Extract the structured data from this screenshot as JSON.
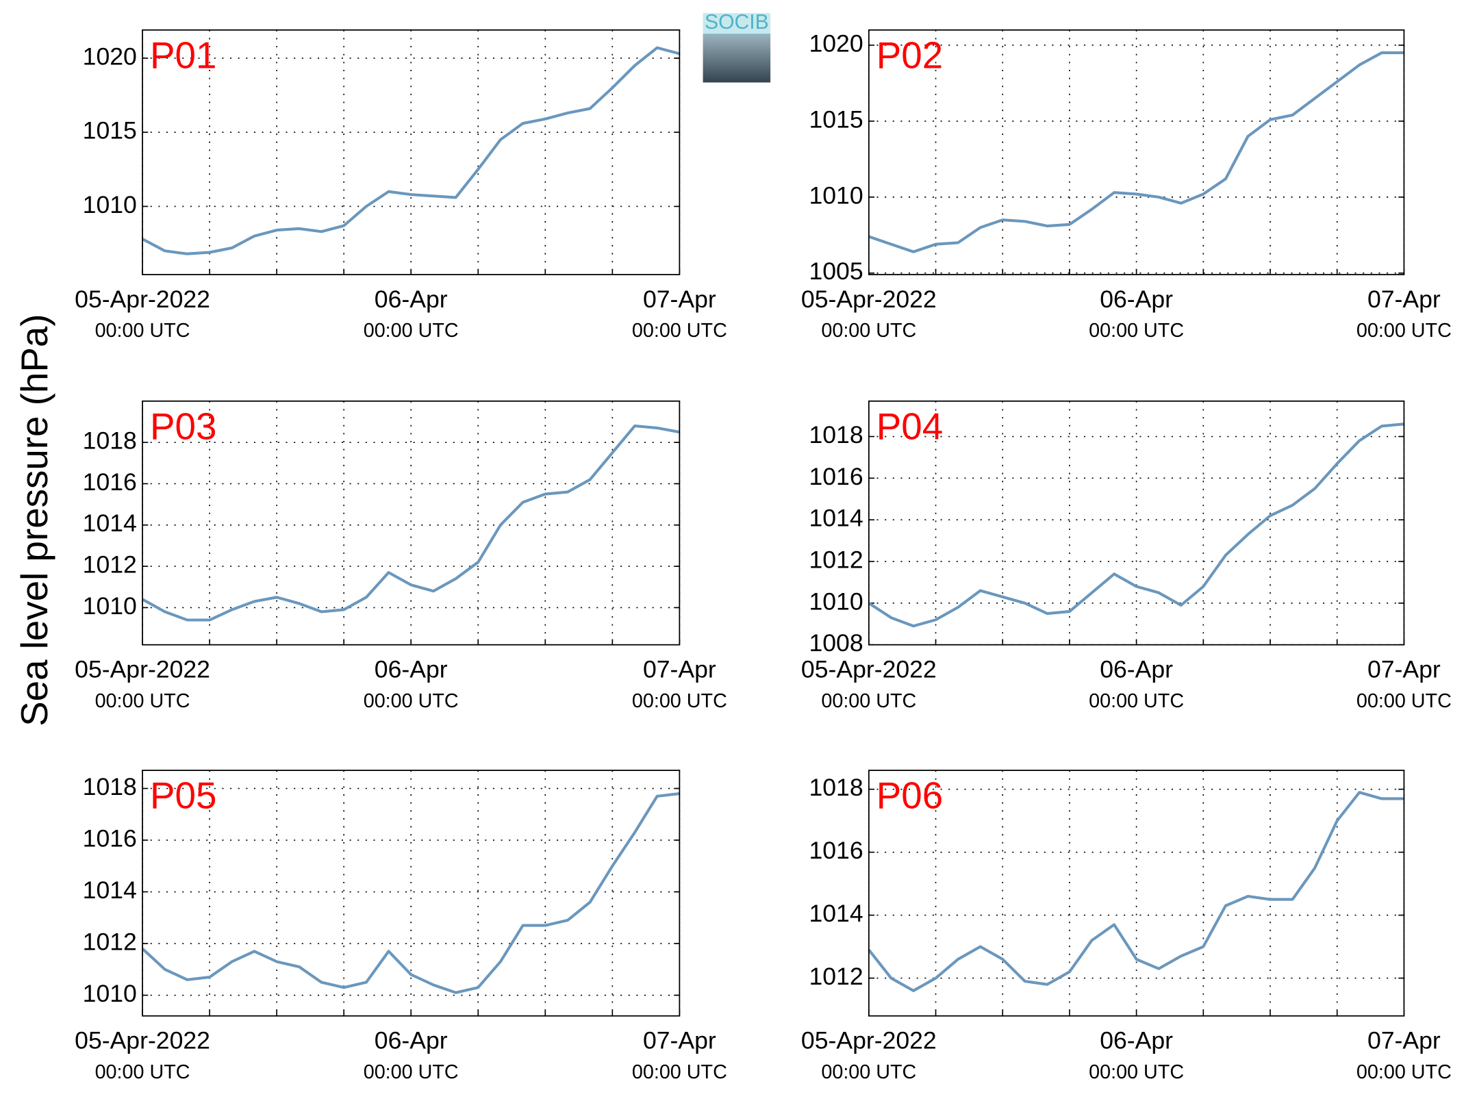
{
  "figure": {
    "ylabel": "Sea level pressure (hPa)",
    "logo": "SOCIB"
  },
  "chart_data": [
    {
      "type": "line",
      "title": "P01",
      "color": "#6a97bd",
      "grid": true,
      "x": [
        "2022-04-05T00:00",
        "2022-04-05T02:00",
        "2022-04-05T04:00",
        "2022-04-05T06:00",
        "2022-04-05T08:00",
        "2022-04-05T10:00",
        "2022-04-05T12:00",
        "2022-04-05T14:00",
        "2022-04-05T16:00",
        "2022-04-05T18:00",
        "2022-04-05T20:00",
        "2022-04-05T22:00",
        "2022-04-06T00:00",
        "2022-04-06T02:00",
        "2022-04-06T04:00",
        "2022-04-06T06:00",
        "2022-04-06T08:00",
        "2022-04-06T10:00",
        "2022-04-06T12:00",
        "2022-04-06T14:00",
        "2022-04-06T16:00",
        "2022-04-06T18:00",
        "2022-04-06T20:00",
        "2022-04-06T22:00",
        "2022-04-07T00:00"
      ],
      "values": [
        1007.8,
        1007.0,
        1006.8,
        1006.9,
        1007.2,
        1008.0,
        1008.4,
        1008.5,
        1008.3,
        1008.7,
        1010.0,
        1011.0,
        1010.8,
        1010.7,
        1010.6,
        1012.5,
        1014.5,
        1015.6,
        1015.9,
        1016.3,
        1016.6,
        1018.0,
        1019.5,
        1020.7,
        1020.3
      ],
      "xlim": [
        "2022-04-05T00:00",
        "2022-04-07T00:00"
      ],
      "xticks": [
        {
          "value": "2022-04-05T00:00",
          "label": [
            "05-Apr-2022",
            "00:00 UTC"
          ]
        },
        {
          "value": "2022-04-06T00:00",
          "label": [
            "06-Apr",
            "00:00 UTC"
          ]
        },
        {
          "value": "2022-04-07T00:00",
          "label": [
            "07-Apr",
            "00:00 UTC"
          ]
        }
      ],
      "xgrid": [
        "2022-04-05T06:00",
        "2022-04-05T12:00",
        "2022-04-05T18:00",
        "2022-04-06T06:00",
        "2022-04-06T12:00",
        "2022-04-06T18:00"
      ],
      "ylim": [
        1005.4,
        1021.9
      ],
      "yticks": [
        1010,
        1015,
        1020
      ]
    },
    {
      "type": "line",
      "title": "P02",
      "color": "#6a97bd",
      "grid": true,
      "x": [
        "2022-04-05T00:00",
        "2022-04-05T02:00",
        "2022-04-05T04:00",
        "2022-04-05T06:00",
        "2022-04-05T08:00",
        "2022-04-05T10:00",
        "2022-04-05T12:00",
        "2022-04-05T14:00",
        "2022-04-05T16:00",
        "2022-04-05T18:00",
        "2022-04-05T20:00",
        "2022-04-05T22:00",
        "2022-04-06T00:00",
        "2022-04-06T02:00",
        "2022-04-06T04:00",
        "2022-04-06T06:00",
        "2022-04-06T08:00",
        "2022-04-06T10:00",
        "2022-04-06T12:00",
        "2022-04-06T14:00",
        "2022-04-06T16:00",
        "2022-04-06T18:00",
        "2022-04-06T20:00",
        "2022-04-06T22:00",
        "2022-04-07T00:00"
      ],
      "values": [
        1007.4,
        1006.9,
        1006.4,
        1006.9,
        1007.0,
        1008.0,
        1008.5,
        1008.4,
        1008.1,
        1008.2,
        1009.2,
        1010.3,
        1010.2,
        1010.0,
        1009.6,
        1010.2,
        1011.2,
        1014.0,
        1015.1,
        1015.4,
        1016.5,
        1017.6,
        1018.7,
        1019.5,
        1019.5
      ],
      "xlim": [
        "2022-04-05T00:00",
        "2022-04-07T00:00"
      ],
      "xticks": [
        {
          "value": "2022-04-05T00:00",
          "label": [
            "05-Apr-2022",
            "00:00 UTC"
          ]
        },
        {
          "value": "2022-04-06T00:00",
          "label": [
            "06-Apr",
            "00:00 UTC"
          ]
        },
        {
          "value": "2022-04-07T00:00",
          "label": [
            "07-Apr",
            "00:00 UTC"
          ]
        }
      ],
      "xgrid": [
        "2022-04-05T06:00",
        "2022-04-05T12:00",
        "2022-04-05T18:00",
        "2022-04-06T06:00",
        "2022-04-06T12:00",
        "2022-04-06T18:00"
      ],
      "ylim": [
        1004.9,
        1021.0
      ],
      "yticks": [
        1005,
        1010,
        1015,
        1020
      ]
    },
    {
      "type": "line",
      "title": "P03",
      "color": "#6a97bd",
      "grid": true,
      "x": [
        "2022-04-05T00:00",
        "2022-04-05T02:00",
        "2022-04-05T04:00",
        "2022-04-05T06:00",
        "2022-04-05T08:00",
        "2022-04-05T10:00",
        "2022-04-05T12:00",
        "2022-04-05T14:00",
        "2022-04-05T16:00",
        "2022-04-05T18:00",
        "2022-04-05T20:00",
        "2022-04-05T22:00",
        "2022-04-06T00:00",
        "2022-04-06T02:00",
        "2022-04-06T04:00",
        "2022-04-06T06:00",
        "2022-04-06T08:00",
        "2022-04-06T10:00",
        "2022-04-06T12:00",
        "2022-04-06T14:00",
        "2022-04-06T16:00",
        "2022-04-06T18:00",
        "2022-04-06T20:00",
        "2022-04-06T22:00",
        "2022-04-07T00:00"
      ],
      "values": [
        1010.4,
        1009.8,
        1009.4,
        1009.4,
        1009.9,
        1010.3,
        1010.5,
        1010.2,
        1009.8,
        1009.9,
        1010.5,
        1011.7,
        1011.1,
        1010.8,
        1011.4,
        1012.2,
        1014.0,
        1015.1,
        1015.5,
        1015.6,
        1016.2,
        1017.5,
        1018.8,
        1018.7,
        1018.5
      ],
      "xlim": [
        "2022-04-05T00:00",
        "2022-04-07T00:00"
      ],
      "xticks": [
        {
          "value": "2022-04-05T00:00",
          "label": [
            "05-Apr-2022",
            "00:00 UTC"
          ]
        },
        {
          "value": "2022-04-06T00:00",
          "label": [
            "06-Apr",
            "00:00 UTC"
          ]
        },
        {
          "value": "2022-04-07T00:00",
          "label": [
            "07-Apr",
            "00:00 UTC"
          ]
        }
      ],
      "xgrid": [
        "2022-04-05T06:00",
        "2022-04-05T12:00",
        "2022-04-05T18:00",
        "2022-04-06T06:00",
        "2022-04-06T12:00",
        "2022-04-06T18:00"
      ],
      "ylim": [
        1008.2,
        1020.0
      ],
      "yticks": [
        1010,
        1012,
        1014,
        1016,
        1018
      ]
    },
    {
      "type": "line",
      "title": "P04",
      "color": "#6a97bd",
      "grid": true,
      "x": [
        "2022-04-05T00:00",
        "2022-04-05T02:00",
        "2022-04-05T04:00",
        "2022-04-05T06:00",
        "2022-04-05T08:00",
        "2022-04-05T10:00",
        "2022-04-05T12:00",
        "2022-04-05T14:00",
        "2022-04-05T16:00",
        "2022-04-05T18:00",
        "2022-04-05T20:00",
        "2022-04-05T22:00",
        "2022-04-06T00:00",
        "2022-04-06T02:00",
        "2022-04-06T04:00",
        "2022-04-06T06:00",
        "2022-04-06T08:00",
        "2022-04-06T10:00",
        "2022-04-06T12:00",
        "2022-04-06T14:00",
        "2022-04-06T16:00",
        "2022-04-06T18:00",
        "2022-04-06T20:00",
        "2022-04-06T22:00",
        "2022-04-07T00:00"
      ],
      "values": [
        1010.0,
        1009.3,
        1008.9,
        1009.2,
        1009.8,
        1010.6,
        1010.3,
        1010.0,
        1009.5,
        1009.6,
        1010.5,
        1011.4,
        1010.8,
        1010.5,
        1009.9,
        1010.8,
        1012.3,
        1013.3,
        1014.2,
        1014.7,
        1015.5,
        1016.7,
        1017.8,
        1018.5,
        1018.6
      ],
      "xlim": [
        "2022-04-05T00:00",
        "2022-04-07T00:00"
      ],
      "xticks": [
        {
          "value": "2022-04-05T00:00",
          "label": [
            "05-Apr-2022",
            "00:00 UTC"
          ]
        },
        {
          "value": "2022-04-06T00:00",
          "label": [
            "06-Apr",
            "00:00 UTC"
          ]
        },
        {
          "value": "2022-04-07T00:00",
          "label": [
            "07-Apr",
            "00:00 UTC"
          ]
        }
      ],
      "xgrid": [
        "2022-04-05T06:00",
        "2022-04-05T12:00",
        "2022-04-05T18:00",
        "2022-04-06T06:00",
        "2022-04-06T12:00",
        "2022-04-06T18:00"
      ],
      "ylim": [
        1008.0,
        1019.7
      ],
      "yticks": [
        1008,
        1010,
        1012,
        1014,
        1016,
        1018
      ]
    },
    {
      "type": "line",
      "title": "P05",
      "color": "#6a97bd",
      "grid": true,
      "x": [
        "2022-04-05T00:00",
        "2022-04-05T02:00",
        "2022-04-05T04:00",
        "2022-04-05T06:00",
        "2022-04-05T08:00",
        "2022-04-05T10:00",
        "2022-04-05T12:00",
        "2022-04-05T14:00",
        "2022-04-05T16:00",
        "2022-04-05T18:00",
        "2022-04-05T20:00",
        "2022-04-05T22:00",
        "2022-04-06T00:00",
        "2022-04-06T02:00",
        "2022-04-06T04:00",
        "2022-04-06T06:00",
        "2022-04-06T08:00",
        "2022-04-06T10:00",
        "2022-04-06T12:00",
        "2022-04-06T14:00",
        "2022-04-06T16:00",
        "2022-04-06T18:00",
        "2022-04-06T20:00",
        "2022-04-06T22:00",
        "2022-04-07T00:00"
      ],
      "values": [
        1011.8,
        1011.0,
        1010.6,
        1010.7,
        1011.3,
        1011.7,
        1011.3,
        1011.1,
        1010.5,
        1010.3,
        1010.5,
        1011.7,
        1010.8,
        1010.4,
        1010.1,
        1010.3,
        1011.3,
        1012.7,
        1012.7,
        1012.9,
        1013.6,
        1015.0,
        1016.3,
        1017.7,
        1017.8
      ],
      "xlim": [
        "2022-04-05T00:00",
        "2022-04-07T00:00"
      ],
      "xticks": [
        {
          "value": "2022-04-05T00:00",
          "label": [
            "05-Apr-2022",
            "00:00 UTC"
          ]
        },
        {
          "value": "2022-04-06T00:00",
          "label": [
            "06-Apr",
            "00:00 UTC"
          ]
        },
        {
          "value": "2022-04-07T00:00",
          "label": [
            "07-Apr",
            "00:00 UTC"
          ]
        }
      ],
      "xgrid": [
        "2022-04-05T06:00",
        "2022-04-05T12:00",
        "2022-04-05T18:00",
        "2022-04-06T06:00",
        "2022-04-06T12:00",
        "2022-04-06T18:00"
      ],
      "ylim": [
        1009.2,
        1018.7
      ],
      "yticks": [
        1010,
        1012,
        1014,
        1016,
        1018
      ]
    },
    {
      "type": "line",
      "title": "P06",
      "color": "#6a97bd",
      "grid": true,
      "x": [
        "2022-04-05T00:00",
        "2022-04-05T02:00",
        "2022-04-05T04:00",
        "2022-04-05T06:00",
        "2022-04-05T08:00",
        "2022-04-05T10:00",
        "2022-04-05T12:00",
        "2022-04-05T14:00",
        "2022-04-05T16:00",
        "2022-04-05T18:00",
        "2022-04-05T20:00",
        "2022-04-05T22:00",
        "2022-04-06T00:00",
        "2022-04-06T02:00",
        "2022-04-06T04:00",
        "2022-04-06T06:00",
        "2022-04-06T08:00",
        "2022-04-06T10:00",
        "2022-04-06T12:00",
        "2022-04-06T14:00",
        "2022-04-06T16:00",
        "2022-04-06T18:00",
        "2022-04-06T20:00",
        "2022-04-06T22:00",
        "2022-04-07T00:00"
      ],
      "values": [
        1012.9,
        1012.0,
        1011.6,
        1012.0,
        1012.6,
        1013.0,
        1012.6,
        1011.9,
        1011.8,
        1012.2,
        1013.2,
        1013.7,
        1012.6,
        1012.3,
        1012.7,
        1013.0,
        1014.3,
        1014.6,
        1014.5,
        1014.5,
        1015.5,
        1017.0,
        1017.9,
        1017.7,
        1017.7
      ],
      "xlim": [
        "2022-04-05T00:00",
        "2022-04-07T00:00"
      ],
      "xticks": [
        {
          "value": "2022-04-05T00:00",
          "label": [
            "05-Apr-2022",
            "00:00 UTC"
          ]
        },
        {
          "value": "2022-04-06T00:00",
          "label": [
            "06-Apr",
            "00:00 UTC"
          ]
        },
        {
          "value": "2022-04-07T00:00",
          "label": [
            "07-Apr",
            "00:00 UTC"
          ]
        }
      ],
      "xgrid": [
        "2022-04-05T06:00",
        "2022-04-05T12:00",
        "2022-04-05T18:00",
        "2022-04-06T06:00",
        "2022-04-06T12:00",
        "2022-04-06T18:00"
      ],
      "ylim": [
        1010.8,
        1018.6
      ],
      "yticks": [
        1012,
        1014,
        1016,
        1018
      ]
    }
  ]
}
